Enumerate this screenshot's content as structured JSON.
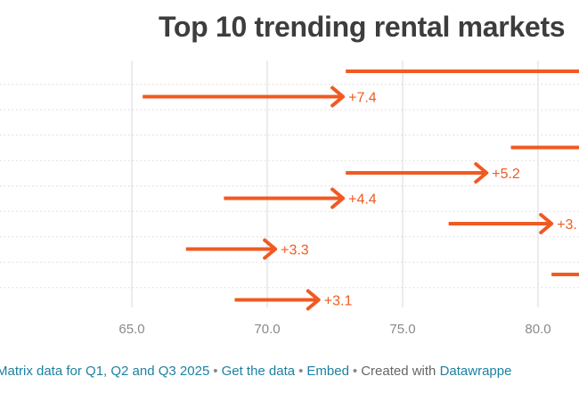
{
  "chart_data": {
    "type": "arrow",
    "title": "Top 10 trending rental markets",
    "xlim": [
      60,
      82
    ],
    "xticks": [
      "65.0",
      "70.0",
      "75.0",
      "80.0"
    ],
    "grid": "vertical dotted",
    "rows": [
      {
        "start": 72.9,
        "end": 83.0,
        "label": ""
      },
      {
        "start": 65.4,
        "end": 72.8,
        "label": "+7.4"
      },
      {
        "start": null,
        "end": null,
        "label": ""
      },
      {
        "start": 79.0,
        "end": 83.0,
        "label": ""
      },
      {
        "start": 72.9,
        "end": 78.1,
        "label": "+5.2"
      },
      {
        "start": 68.4,
        "end": 72.8,
        "label": "+4.4"
      },
      {
        "start": 76.7,
        "end": 80.5,
        "label": "+3."
      },
      {
        "start": 67.0,
        "end": 70.3,
        "label": "+3.3"
      },
      {
        "start": 80.5,
        "end": 83.0,
        "label": ""
      },
      {
        "start": 68.8,
        "end": 71.9,
        "label": "+3.1"
      }
    ]
  },
  "footer": {
    "source": "Matrix data for Q1, Q2 and Q3 2025",
    "sep": "•",
    "get_data": "Get the data",
    "embed": "Embed",
    "created": "Created with",
    "tool": "Datawrappe"
  },
  "colors": {
    "arrow": "#f05a22",
    "grid": "#d8d8d8",
    "tick": "#8a8a8a",
    "title": "#3d3d3d",
    "link": "#1d81a2"
  }
}
